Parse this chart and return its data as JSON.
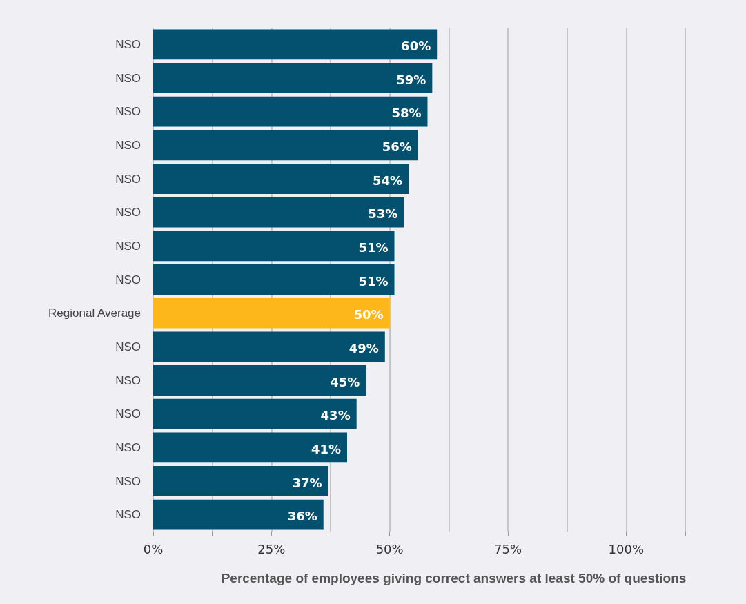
{
  "chart_data": {
    "type": "bar",
    "orientation": "horizontal",
    "xlabel": "Percentage of employees giving correct answers at least 50% of questions",
    "categories": [
      "NSO",
      "NSO",
      "NSO",
      "NSO",
      "NSO",
      "NSO",
      "NSO",
      "NSO",
      "Regional Average",
      "NSO",
      "NSO",
      "NSO",
      "NSO",
      "NSO",
      "NSO"
    ],
    "values": [
      60,
      59,
      58,
      56,
      54,
      53,
      51,
      51,
      50,
      49,
      45,
      43,
      41,
      37,
      36
    ],
    "value_labels": [
      "60%",
      "59%",
      "58%",
      "56%",
      "54%",
      "53%",
      "51%",
      "51%",
      "50%",
      "49%",
      "45%",
      "43%",
      "41%",
      "37%",
      "36%"
    ],
    "colors": [
      "#03506f",
      "#03506f",
      "#03506f",
      "#03506f",
      "#03506f",
      "#03506f",
      "#03506f",
      "#03506f",
      "#fdb71a",
      "#03506f",
      "#03506f",
      "#03506f",
      "#03506f",
      "#03506f",
      "#03506f"
    ],
    "xlim": [
      0,
      112.5
    ],
    "xticks": [
      {
        "value": 0,
        "label": "0%"
      },
      {
        "value": 12.5,
        "label": null
      },
      {
        "value": 25,
        "label": "25%"
      },
      {
        "value": 37.5,
        "label": null
      },
      {
        "value": 50,
        "label": "50%"
      },
      {
        "value": 62.5,
        "label": null
      },
      {
        "value": 75,
        "label": "75%"
      },
      {
        "value": 87.5,
        "label": null
      },
      {
        "value": 100,
        "label": "100%"
      },
      {
        "value": 112.5,
        "label": null
      }
    ],
    "grid": "x"
  }
}
